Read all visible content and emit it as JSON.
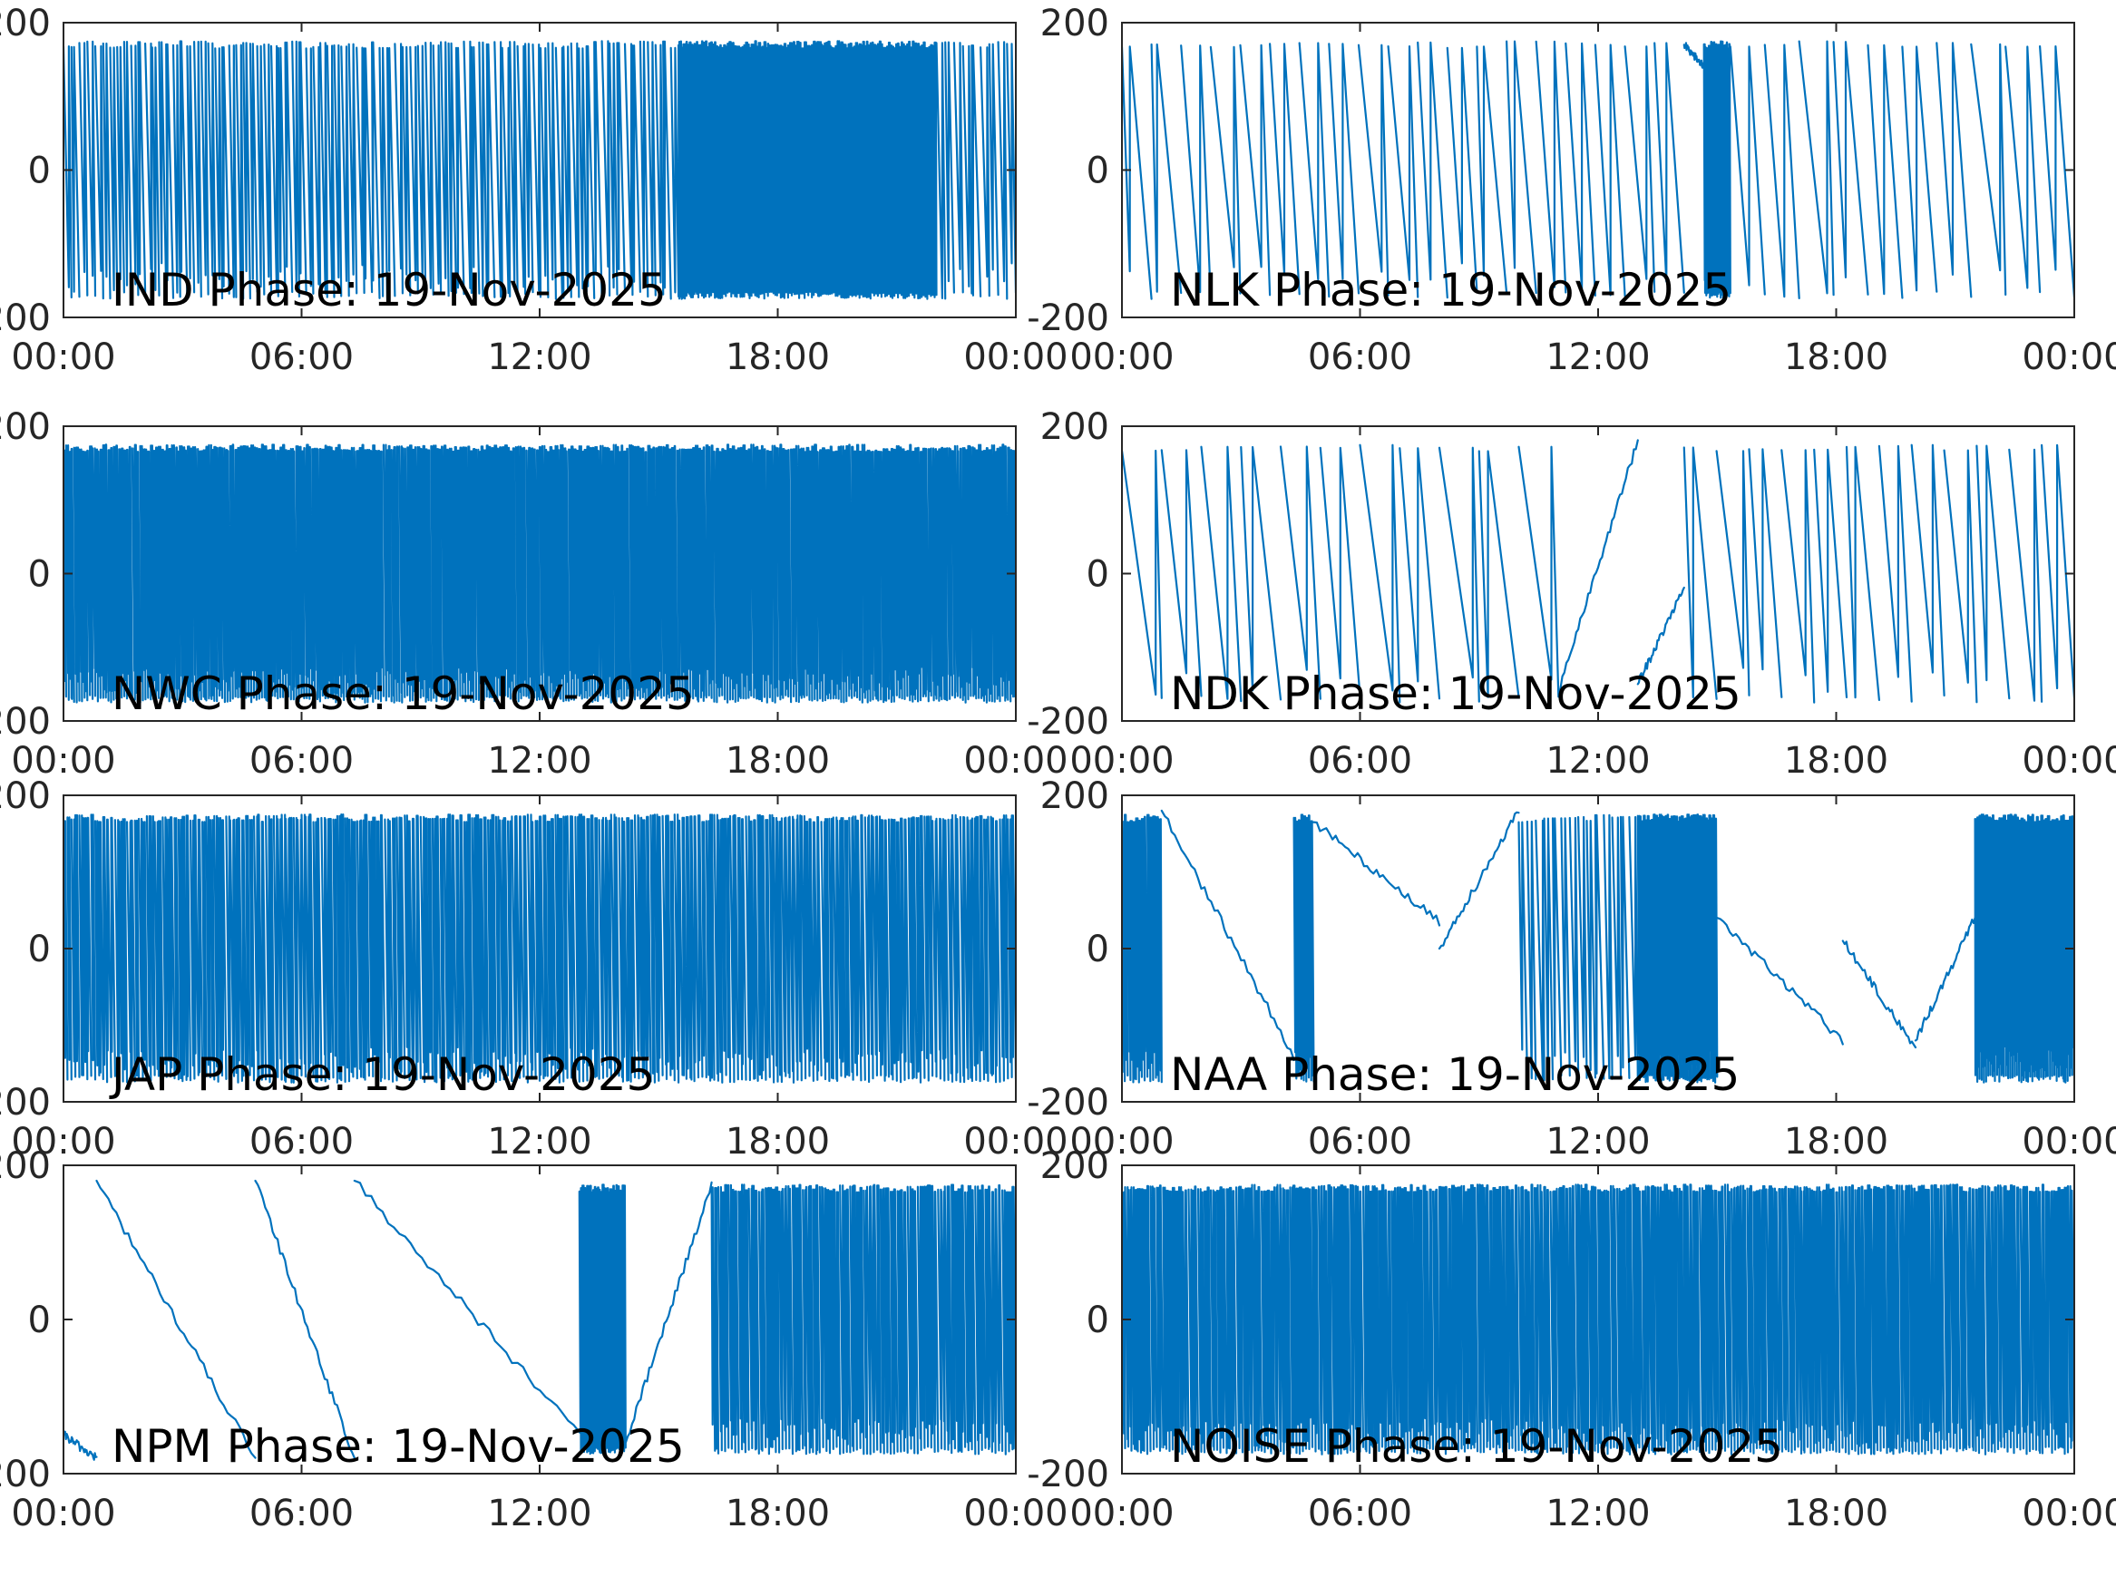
{
  "figure": {
    "line_color": "#0072bd",
    "axis_color": "#262626",
    "background": "#ffffff"
  },
  "chart_data": [
    {
      "type": "line",
      "title": "IND Phase: 19-Nov-2025",
      "x_ticks": [
        "00:00",
        "06:00",
        "12:00",
        "18:00",
        "00:00"
      ],
      "xlim": [
        "00:00",
        "24:00"
      ],
      "y_ticks": [
        "-200",
        "0",
        "200"
      ],
      "ylim": [
        -200,
        200
      ],
      "segments": [
        {
          "start": "00:00",
          "end": "01:00",
          "cycles": 5
        },
        {
          "start": "01:00",
          "end": "07:00",
          "cycles": 34
        },
        {
          "start": "07:00",
          "end": "15:30",
          "cycles": 44
        },
        {
          "start": "15:30",
          "end": "16:00",
          "cycles": 25
        },
        {
          "start": "16:00",
          "end": "22:00",
          "cycles": 130
        },
        {
          "start": "22:00",
          "end": "24:00",
          "cycles": 9
        }
      ]
    },
    {
      "type": "line",
      "title": "NLK Phase: 19-Nov-2025",
      "x_ticks": [
        "00:00",
        "06:00",
        "12:00",
        "18:00",
        "00:00"
      ],
      "xlim": [
        "00:00",
        "24:00"
      ],
      "y_ticks": [
        "-200",
        "0",
        "200"
      ],
      "ylim": [
        -200,
        200
      ],
      "segments": [
        {
          "start": "00:00",
          "end": "14:10",
          "cycles": 19
        },
        {
          "start": "14:10",
          "end": "14:40",
          "value_from": 170,
          "value_to": 140
        },
        {
          "start": "14:40",
          "end": "15:20",
          "cycles": 22
        },
        {
          "start": "15:20",
          "end": "24:00",
          "cycles": 10
        }
      ]
    },
    {
      "type": "line",
      "title": "NWC Phase: 19-Nov-2025",
      "x_ticks": [
        "00:00",
        "06:00",
        "12:00",
        "18:00",
        "00:00"
      ],
      "xlim": [
        "00:00",
        "24:00"
      ],
      "y_ticks": [
        "-200",
        "0",
        "200"
      ],
      "ylim": [
        -200,
        200
      ],
      "segments": [
        {
          "start": "00:00",
          "end": "24:00",
          "cycles": 360
        }
      ]
    },
    {
      "type": "line",
      "title": "NDK Phase: 19-Nov-2025",
      "x_ticks": [
        "00:00",
        "06:00",
        "12:00",
        "18:00",
        "00:00"
      ],
      "xlim": [
        "00:00",
        "24:00"
      ],
      "y_ticks": [
        "-200",
        "0",
        "200"
      ],
      "ylim": [
        -200,
        200
      ],
      "segments": [
        {
          "start": "00:00",
          "end": "11:00",
          "cycles": 11
        },
        {
          "start": "11:00",
          "end": "13:00",
          "value_from": -160,
          "value_to": 180
        },
        {
          "start": "13:00",
          "end": "14:10",
          "value_from": -150,
          "value_to": -20
        },
        {
          "start": "14:10",
          "end": "24:00",
          "cycles": 12
        }
      ]
    },
    {
      "type": "line",
      "title": "JAP Phase: 19-Nov-2025",
      "x_ticks": [
        "00:00",
        "06:00",
        "12:00",
        "18:00",
        "00:00"
      ],
      "xlim": [
        "00:00",
        "24:00"
      ],
      "y_ticks": [
        "-200",
        "0",
        "200"
      ],
      "ylim": [
        -200,
        200
      ],
      "segments": [
        {
          "start": "00:00",
          "end": "24:00",
          "cycles": 240
        }
      ]
    },
    {
      "type": "line",
      "title": "NAA Phase: 19-Nov-2025",
      "x_ticks": [
        "00:00",
        "06:00",
        "12:00",
        "18:00",
        "00:00"
      ],
      "xlim": [
        "00:00",
        "24:00"
      ],
      "y_ticks": [
        "-200",
        "0",
        "200"
      ],
      "ylim": [
        -200,
        200
      ],
      "segments": [
        {
          "start": "00:00",
          "end": "01:00",
          "cycles": 14
        },
        {
          "start": "01:00",
          "end": "04:20",
          "value_from": 180,
          "value_to": -140
        },
        {
          "start": "04:20",
          "end": "04:50",
          "cycles": 8
        },
        {
          "start": "04:50",
          "end": "08:00",
          "value_from": 165,
          "value_to": 35
        },
        {
          "start": "08:00",
          "end": "10:00",
          "value_from": 0,
          "value_to": 180
        },
        {
          "start": "10:00",
          "end": "13:00",
          "cycles": 14
        },
        {
          "start": "13:00",
          "end": "15:00",
          "cycles": 40
        },
        {
          "start": "15:00",
          "end": "18:10",
          "value_from": 40,
          "value_to": -120
        },
        {
          "start": "18:10",
          "end": "20:00",
          "value_from": 10,
          "value_to": -130
        },
        {
          "start": "20:00",
          "end": "21:30",
          "value_from": -120,
          "value_to": 40
        },
        {
          "start": "21:30",
          "end": "24:00",
          "cycles": 45
        }
      ]
    },
    {
      "type": "line",
      "title": "NPM Phase: 19-Nov-2025",
      "x_ticks": [
        "00:00",
        "06:00",
        "12:00",
        "18:00",
        "00:00"
      ],
      "xlim": [
        "00:00",
        "24:00"
      ],
      "y_ticks": [
        "-200",
        "0",
        "200"
      ],
      "ylim": [
        -200,
        200
      ],
      "segments": [
        {
          "start": "00:00",
          "end": "00:50",
          "value_from": -150,
          "value_to": -180
        },
        {
          "start": "00:50",
          "end": "04:50",
          "value_from": 180,
          "value_to": -180
        },
        {
          "start": "04:50",
          "end": "07:20",
          "value_from": 180,
          "value_to": -180
        },
        {
          "start": "07:20",
          "end": "13:00",
          "value_from": 180,
          "value_to": -150
        },
        {
          "start": "13:00",
          "end": "14:10",
          "cycles": 30
        },
        {
          "start": "14:10",
          "end": "16:20",
          "value_from": -160,
          "value_to": 175
        },
        {
          "start": "16:20",
          "end": "24:00",
          "cycles": 90
        }
      ]
    },
    {
      "type": "line",
      "title": "NOISE Phase: 19-Nov-2025",
      "x_ticks": [
        "00:00",
        "06:00",
        "12:00",
        "18:00",
        "00:00"
      ],
      "xlim": [
        "00:00",
        "24:00"
      ],
      "y_ticks": [
        "-200",
        "0",
        "200"
      ],
      "ylim": [
        -200,
        200
      ],
      "segments": [
        {
          "start": "00:00",
          "end": "24:00",
          "cycles": 300
        }
      ]
    }
  ]
}
